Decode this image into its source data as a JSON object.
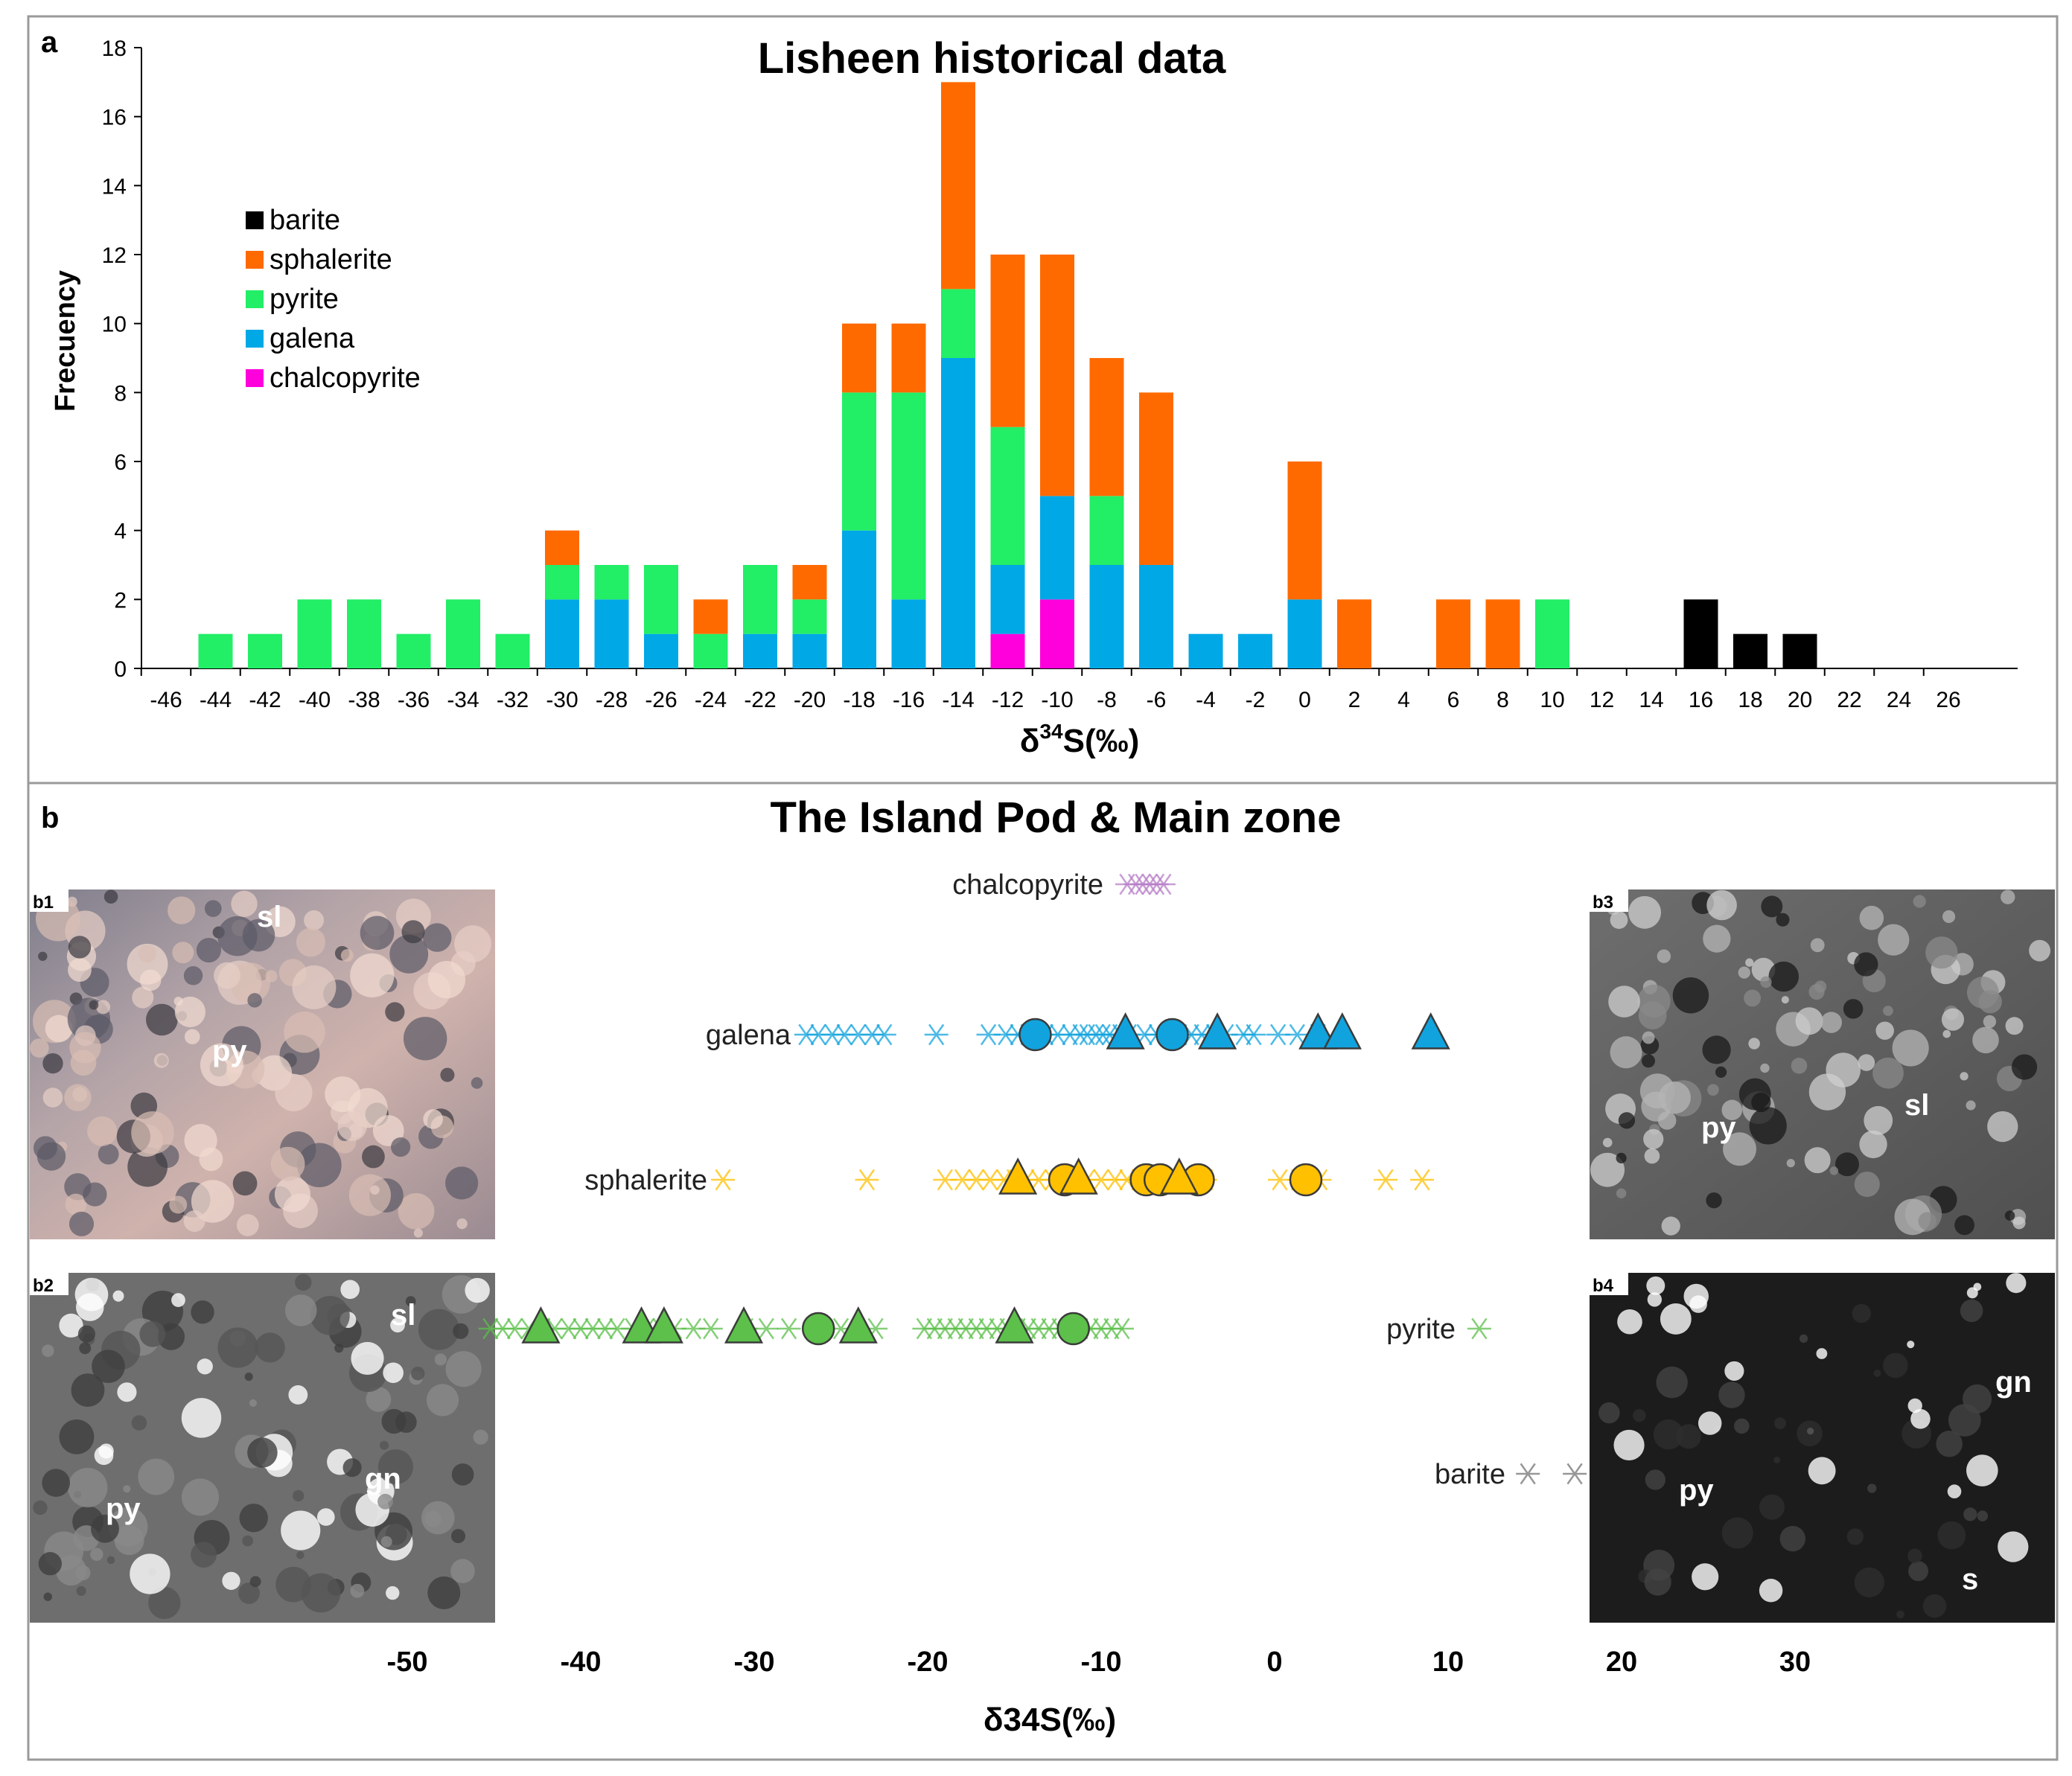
{
  "colors": {
    "barite": "#000000",
    "sphalerite": "#ff6a00",
    "pyrite": "#22ee66",
    "galena": "#00a8e6",
    "chalcopyrite": "#ff00dd",
    "galena_marker": "#11a3de",
    "sphalerite_marker": "#ffc000",
    "pyrite_marker": "#5cc04a",
    "chalcopyrite_marker": "#b77ec8",
    "barite_marker": "#8c8c8c"
  },
  "panel_a": {
    "label": "a",
    "photo_labels": {}
  },
  "panel_b": {
    "label": "b",
    "title": "The Island Pod & Main zone",
    "photos": [
      {
        "id": "b1",
        "labels": [
          "sl",
          "py"
        ]
      },
      {
        "id": "b2",
        "labels": [
          "sl",
          "py",
          "gn"
        ]
      },
      {
        "id": "b3",
        "labels": [
          "py",
          "sl"
        ]
      },
      {
        "id": "b4",
        "labels": [
          "gn",
          "py",
          "s"
        ]
      }
    ]
  },
  "chart_data": [
    {
      "type": "bar",
      "stacked": true,
      "title": "Lisheen historical data",
      "xlabel": "δ34S(‰)",
      "ylabel": "Frecuency",
      "ylim": [
        0,
        18
      ],
      "yticks": [
        0,
        2,
        4,
        6,
        8,
        10,
        12,
        14,
        16,
        18
      ],
      "categories": [
        "-46",
        "-44",
        "-42",
        "-40",
        "-38",
        "-36",
        "-34",
        "-32",
        "-30",
        "-28",
        "-26",
        "-24",
        "-22",
        "-20",
        "-18",
        "-16",
        "-14",
        "-12",
        "-10",
        "-8",
        "-6",
        "-4",
        "-2",
        "0",
        "2",
        "4",
        "6",
        "8",
        "10",
        "12",
        "14",
        "16",
        "18",
        "20",
        "22",
        "24",
        "26"
      ],
      "legend_position": "upper-left",
      "series": [
        {
          "name": "chalcopyrite",
          "values": [
            0,
            0,
            0,
            0,
            0,
            0,
            0,
            0,
            0,
            0,
            0,
            0,
            0,
            0,
            0,
            0,
            0,
            1,
            2,
            0,
            0,
            0,
            0,
            0,
            0,
            0,
            0,
            0,
            0,
            0,
            0,
            0,
            0,
            0,
            0,
            0,
            0
          ]
        },
        {
          "name": "galena",
          "values": [
            0,
            0,
            0,
            0,
            0,
            0,
            0,
            0,
            2,
            2,
            1,
            0,
            1,
            1,
            4,
            2,
            9,
            2,
            3,
            3,
            3,
            1,
            1,
            2,
            0,
            0,
            0,
            0,
            0,
            0,
            0,
            0,
            0,
            0,
            0,
            0,
            0
          ]
        },
        {
          "name": "pyrite",
          "values": [
            0,
            1,
            1,
            2,
            2,
            1,
            2,
            1,
            1,
            1,
            2,
            1,
            2,
            1,
            4,
            6,
            2,
            4,
            0,
            2,
            0,
            0,
            0,
            0,
            0,
            0,
            0,
            0,
            2,
            0,
            0,
            0,
            0,
            0,
            0,
            0,
            0
          ]
        },
        {
          "name": "sphalerite",
          "values": [
            0,
            0,
            0,
            0,
            0,
            0,
            0,
            0,
            1,
            0,
            0,
            1,
            0,
            1,
            2,
            2,
            6,
            5,
            7,
            4,
            5,
            0,
            0,
            4,
            2,
            0,
            2,
            2,
            0,
            0,
            0,
            0,
            0,
            0,
            0,
            0,
            0
          ]
        },
        {
          "name": "barite",
          "values": [
            0,
            0,
            0,
            0,
            0,
            0,
            0,
            0,
            0,
            0,
            0,
            0,
            0,
            0,
            0,
            0,
            0,
            0,
            0,
            0,
            0,
            0,
            0,
            0,
            0,
            0,
            0,
            0,
            0,
            0,
            0,
            2,
            1,
            1,
            0,
            0,
            0
          ]
        }
      ],
      "legend_order": [
        "barite",
        "sphalerite",
        "pyrite",
        "galena",
        "chalcopyrite"
      ]
    },
    {
      "type": "scatter",
      "title": "The Island Pod & Main zone",
      "xlabel": "δ34S(‰)",
      "xlim": [
        -55,
        40
      ],
      "xticks": [
        -50,
        -40,
        -30,
        -20,
        -10,
        0,
        10,
        20,
        30
      ],
      "series": [
        {
          "name": "chalcopyrite",
          "stars": [
            -8.5,
            -8.0,
            -7.6,
            -7.2,
            -6.8,
            -6.4
          ],
          "circles": [],
          "triangles": []
        },
        {
          "name": "galena",
          "stars": [
            -27,
            -26.3,
            -25.5,
            -24.8,
            -24,
            -23.2,
            -22.5,
            -19.5,
            -16.5,
            -15.5,
            -14.8,
            -14.2,
            -13.6,
            -13.2,
            -12.5,
            -11.8,
            -11.2,
            -10.8,
            -10.3,
            -9.9,
            -9.5,
            -8.9,
            -8.4,
            -7.5,
            -6.8,
            -6.2,
            -5.5,
            -4.8,
            -4.2,
            -3.5,
            -2.8,
            -1.8,
            -1.2,
            0.2,
            1.3,
            2.5
          ],
          "circles": [
            -13.8,
            -5.9
          ],
          "triangles": [
            -8.6,
            -3.3,
            2.5,
            3.9,
            9.0
          ]
        },
        {
          "name": "sphalerite",
          "stars": [
            -31.8,
            -23.5,
            -19.0,
            -18.0,
            -17.2,
            -16.4,
            -15.6,
            -15.0,
            -14.3,
            -13.6,
            -12.8,
            -11.6,
            -10.8,
            -10.0,
            -9.2,
            -8.5,
            -7.8,
            -7.0,
            -6.2,
            -5.5,
            -4.8,
            -4.0,
            0.3,
            1.4,
            2.6,
            6.4,
            8.5
          ],
          "circles": [
            -12.1,
            -7.4,
            -6.6,
            -4.4,
            1.8
          ],
          "triangles": [
            -14.8,
            -11.3,
            -5.5
          ]
        },
        {
          "name": "pyrite",
          "stars": [
            -45.2,
            -44.5,
            -43.8,
            -43,
            -42.2,
            -41.5,
            -40.7,
            -40,
            -39.3,
            -38.6,
            -37.9,
            -37,
            -36.2,
            -35.4,
            -34.6,
            -33.5,
            -32.5,
            -30.5,
            -29.3,
            -28,
            -26.5,
            -25,
            -23,
            -20.2,
            -19.6,
            -19,
            -18.4,
            -17.8,
            -17.2,
            -16.6,
            -16,
            -15.4,
            -14.8,
            -14.2,
            -13.6,
            -13,
            -12.4,
            -11.8,
            -11.2,
            -10.6,
            -10,
            -9.4,
            -8.8,
            11.8
          ],
          "circles": [
            -26.3,
            -11.6
          ],
          "triangles": [
            -42.3,
            -36.5,
            -35.2,
            -30.6,
            -24.0,
            -15.0
          ]
        },
        {
          "name": "barite",
          "stars": [
            14.6,
            17.3
          ],
          "circles": [],
          "triangles": []
        }
      ]
    }
  ]
}
